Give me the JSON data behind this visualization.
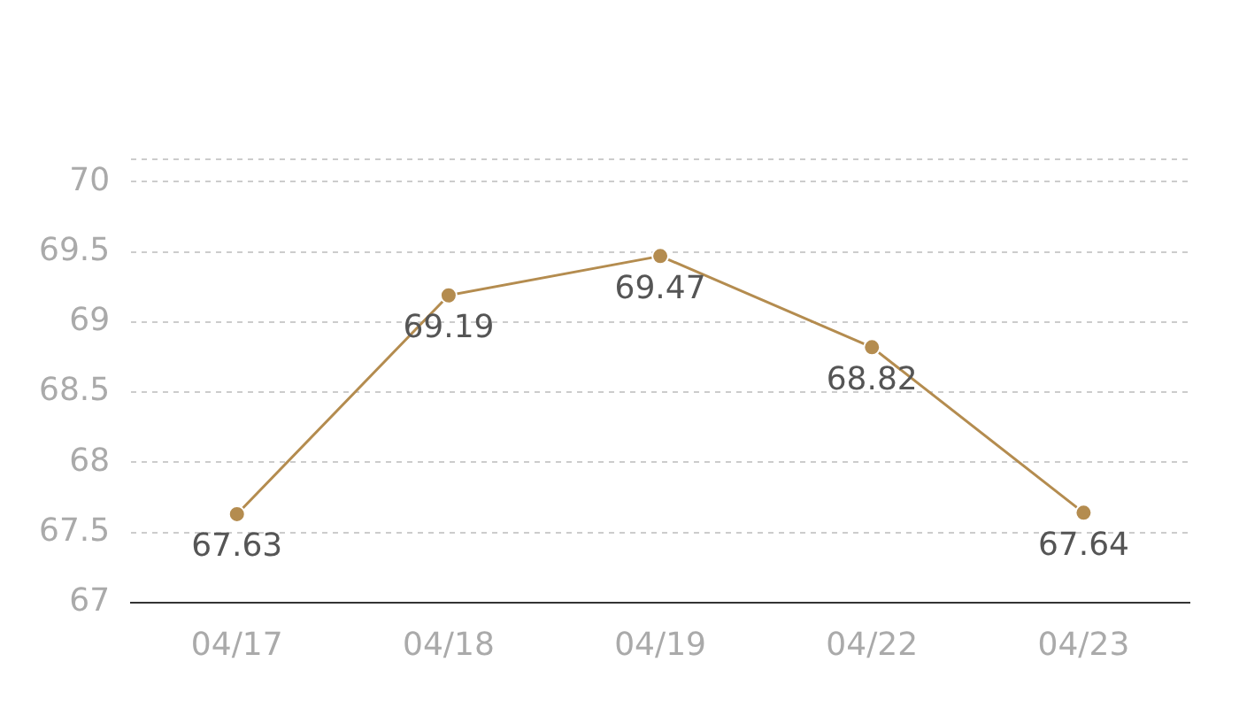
{
  "chart_data": {
    "type": "line",
    "categories": [
      "04/17",
      "04/18",
      "04/19",
      "04/22",
      "04/23"
    ],
    "series": [
      {
        "color": "#b48c4f",
        "values": [
          67.63,
          69.19,
          69.47,
          68.82,
          67.64
        ]
      }
    ],
    "ylim": [
      67,
      70.16
    ],
    "yticks": [
      67,
      67.5,
      68,
      68.5,
      69,
      69.5,
      70,
      {
        "value": 70.16,
        "label": null
      }
    ],
    "grid": "y",
    "marker": "circle",
    "line_style": "solid",
    "data_labels": true,
    "legend": false
  }
}
